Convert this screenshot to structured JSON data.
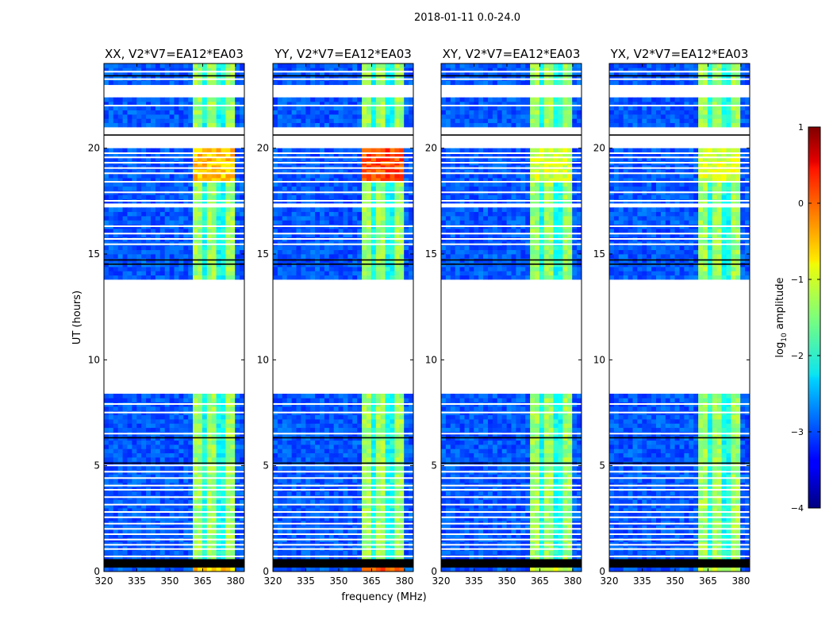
{
  "chart_data": {
    "type": "heatmap",
    "suptitle": "2018-01-11 0.0-24.0",
    "xlabel": "frequency (MHz)",
    "ylabel": "UT (hours)",
    "xlim": [
      320,
      384
    ],
    "ylim": [
      0,
      24
    ],
    "xticks": [
      320,
      335,
      350,
      365,
      380
    ],
    "yticks": [
      0,
      5,
      10,
      15,
      20
    ],
    "blank_time_ranges_hours": [
      [
        8.5,
        13.9
      ],
      [
        22.5,
        23.0
      ],
      [
        20.1,
        21.0
      ],
      [
        17.2,
        17.4
      ]
    ],
    "flagged_time_ranges_hours": [
      [
        0.3,
        0.65
      ],
      [
        20.55,
        20.7
      ]
    ],
    "active_band_mhz": [
      360,
      380
    ],
    "panels": [
      {
        "title": "XX, V2*V7=EA12*EA03",
        "peak_log_amp": -0.3
      },
      {
        "title": "YY, V2*V7=EA12*EA03",
        "peak_log_amp": 0.3
      },
      {
        "title": "XY, V2*V7=EA12*EA03",
        "peak_log_amp": -0.8
      },
      {
        "title": "YX, V2*V7=EA12*EA03",
        "peak_log_amp": -0.8
      }
    ],
    "colorbar": {
      "label": "log",
      "label_sub": "10",
      "label_rest": " amplitude",
      "range": [
        -4,
        1
      ],
      "ticks": [
        1,
        0,
        -1,
        -2,
        -3,
        -4
      ],
      "tick_labels": [
        "1",
        "0",
        "−1",
        "−2",
        "−3",
        "−4"
      ],
      "colormap": "jet"
    }
  }
}
